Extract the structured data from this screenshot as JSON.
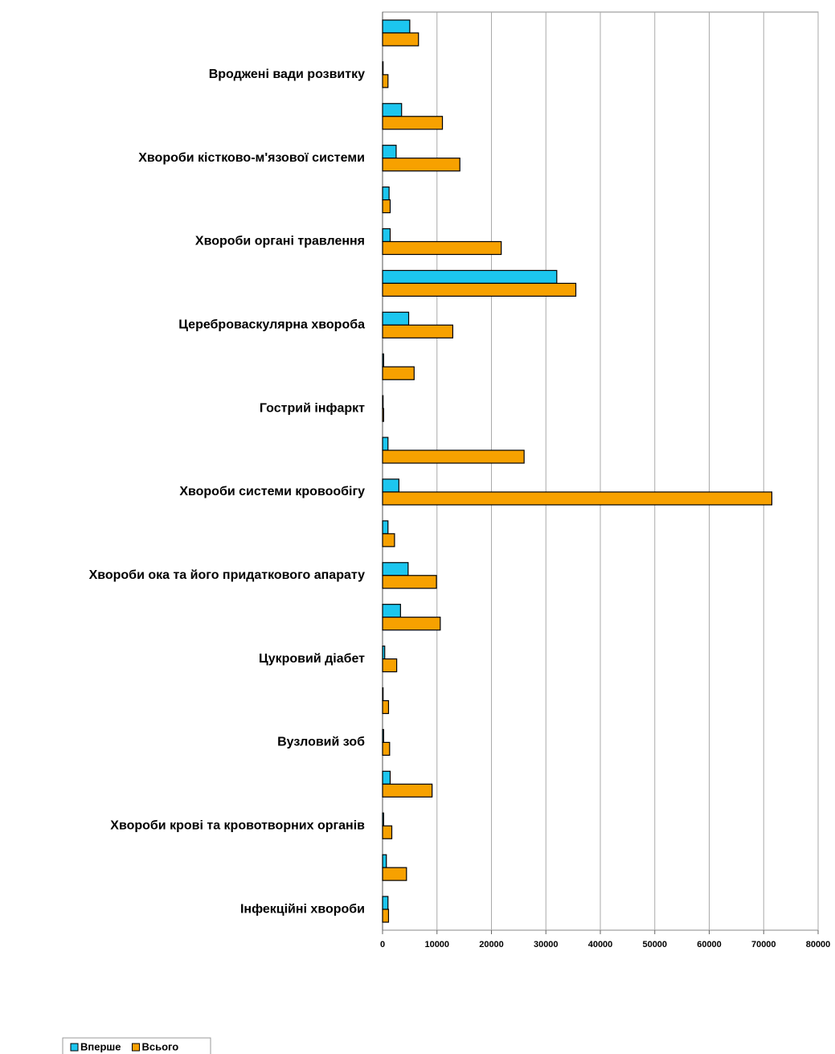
{
  "chart_data": {
    "type": "hbar",
    "categories": [
      "Інфекційні хвороби",
      null,
      "Хвороби крові та кровотворних органів",
      null,
      "Вузловий зоб",
      null,
      "Цукровий діабет",
      null,
      "Хвороби ока та його придаткового апарату",
      null,
      "Хвороби системи кровообігу",
      null,
      "Гострий інфаркт",
      null,
      "Цереброваскулярна хвороба",
      null,
      "Хвороби органі травлення",
      null,
      "Хвороби кістково-м'язової системи",
      null,
      "Вроджені вади розвитку",
      null
    ],
    "series": [
      {
        "name": "Вперше",
        "color": "#1cc6ef",
        "values": [
          1000,
          700,
          200,
          1400,
          200,
          100,
          400,
          3300,
          4700,
          1000,
          3000,
          1000,
          100,
          200,
          4800,
          32000,
          1400,
          1200,
          2500,
          3500,
          100,
          5000
        ]
      },
      {
        "name": "Всього",
        "color": "#f7a100",
        "values": [
          1100,
          4400,
          1700,
          9100,
          1300,
          1100,
          2600,
          10600,
          9900,
          2200,
          71500,
          26000,
          200,
          5800,
          12900,
          35500,
          21800,
          1400,
          14200,
          11000,
          1000,
          6600
        ]
      }
    ],
    "xlim": [
      0,
      80000
    ],
    "xticks": [
      0,
      10000,
      20000,
      30000,
      40000,
      50000,
      60000,
      70000,
      80000
    ],
    "grid": true,
    "legend": "bottom-left"
  }
}
